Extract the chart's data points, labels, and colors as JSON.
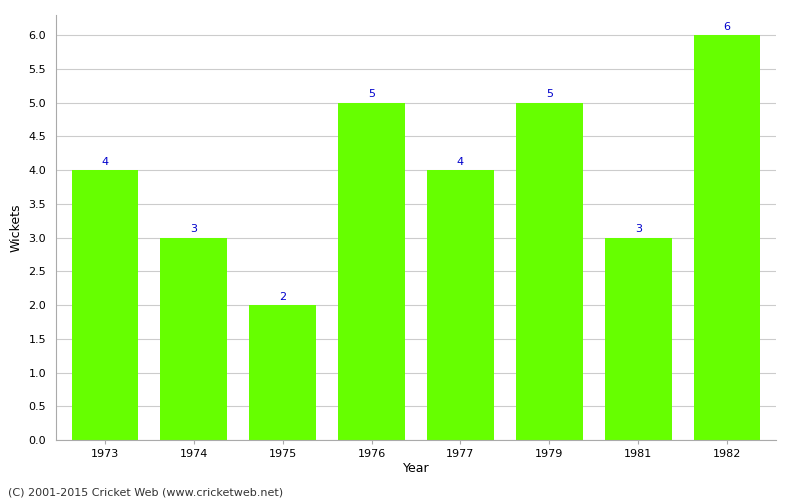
{
  "years": [
    "1973",
    "1974",
    "1975",
    "1976",
    "1977",
    "1979",
    "1981",
    "1982"
  ],
  "wickets": [
    4,
    3,
    2,
    5,
    4,
    5,
    3,
    6
  ],
  "bar_color": "#66ff00",
  "bar_edge_color": "#66ff00",
  "title": "",
  "xlabel": "Year",
  "ylabel": "Wickets",
  "ylim": [
    0,
    6.3
  ],
  "yticks": [
    0.0,
    0.5,
    1.0,
    1.5,
    2.0,
    2.5,
    3.0,
    3.5,
    4.0,
    4.5,
    5.0,
    5.5,
    6.0
  ],
  "label_color": "#0000cc",
  "label_fontsize": 8,
  "axis_fontsize": 8,
  "xlabel_fontsize": 9,
  "ylabel_fontsize": 9,
  "footer_text": "(C) 2001-2015 Cricket Web (www.cricketweb.net)",
  "footer_fontsize": 8,
  "background_color": "#ffffff",
  "grid_color": "#cccccc",
  "bar_width": 0.75
}
